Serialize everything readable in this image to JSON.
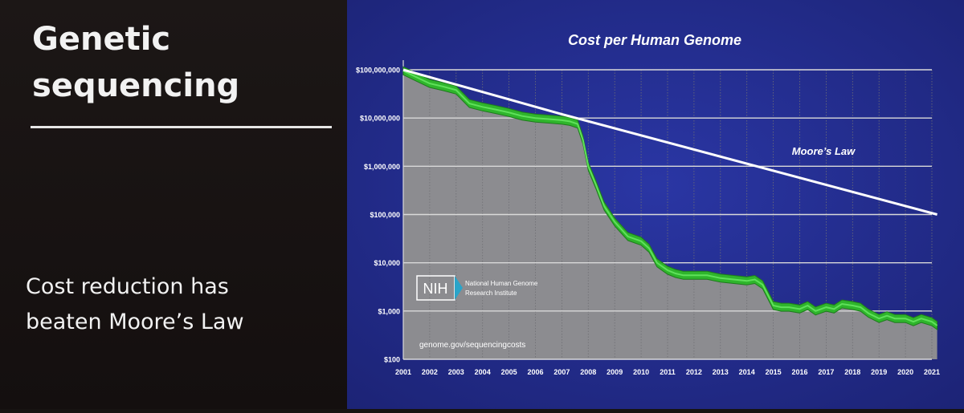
{
  "slide": {
    "title_lines": [
      "Genetic",
      "sequencing"
    ],
    "subtitle_lines": [
      "Cost reduction has",
      "beaten Moore’s Law"
    ]
  },
  "colors": {
    "slide_bg": "#171312",
    "panel_bg": "#242d8f",
    "gap_fill": "#1e2a82",
    "cost_area": "#8c8c90",
    "cost_band": "#2fb52c",
    "moore_line": "#ffffff"
  },
  "nih": {
    "badge": "NIH",
    "name_lines": [
      "National Human Genome",
      "Research Institute"
    ],
    "url": "genome.gov/sequencingcosts"
  },
  "chart_data": {
    "type": "line",
    "title": "Cost per Human Genome",
    "y_scale": "log",
    "ylim": [
      100,
      100000000
    ],
    "y_tick_values": [
      100,
      1000,
      10000,
      100000,
      1000000,
      10000000,
      100000000
    ],
    "y_tick_labels": [
      "$100",
      "$1,000",
      "$10,000",
      "$100,000",
      "$1,000,000",
      "$10,000,000",
      "$100,000,000"
    ],
    "x_tick_labels": [
      "2001",
      "2002",
      "2003",
      "2004",
      "2005",
      "2006",
      "2007",
      "2008",
      "2009",
      "2010",
      "2011",
      "2012",
      "2013",
      "2014",
      "2015",
      "2016",
      "2017",
      "2018",
      "2019",
      "2020",
      "2021"
    ],
    "grid": true,
    "series": [
      {
        "name": "",
        "x": [
          2001.0,
          2001.5,
          2002.0,
          2002.5,
          2003.0,
          2003.5,
          2004.0,
          2004.5,
          2005.0,
          2005.5,
          2006.0,
          2006.5,
          2007.0,
          2007.3,
          2007.6,
          2007.8,
          2008.0,
          2008.3,
          2008.6,
          2009.0,
          2009.5,
          2010.0,
          2010.3,
          2010.6,
          2011.0,
          2011.3,
          2011.6,
          2012.0,
          2012.5,
          2013.0,
          2013.5,
          2014.0,
          2014.3,
          2014.6,
          2015.0,
          2015.3,
          2015.6,
          2016.0,
          2016.3,
          2016.6,
          2017.0,
          2017.3,
          2017.6,
          2018.0,
          2018.3,
          2018.6,
          2019.0,
          2019.3,
          2019.6,
          2020.0,
          2020.3,
          2020.6,
          2021.0,
          2021.2
        ],
        "values": [
          95000000,
          70000000,
          52000000,
          45000000,
          38000000,
          20000000,
          17000000,
          15000000,
          13000000,
          11000000,
          10000000,
          9500000,
          9000000,
          8500000,
          7500000,
          3500000,
          1000000,
          400000,
          150000,
          70000,
          35000,
          28000,
          20000,
          10000,
          7000,
          6000,
          5500,
          5500,
          5500,
          4800,
          4500,
          4200,
          4500,
          3500,
          1300,
          1200,
          1200,
          1100,
          1300,
          1000,
          1200,
          1100,
          1400,
          1300,
          1200,
          900,
          700,
          800,
          700,
          700,
          600,
          700,
          600,
          500
        ]
      },
      {
        "name": "Moore’s Law",
        "x": [
          2001.0,
          2007.0,
          2021.2
        ],
        "values": [
          100000000,
          12000000,
          100000
        ]
      }
    ]
  }
}
